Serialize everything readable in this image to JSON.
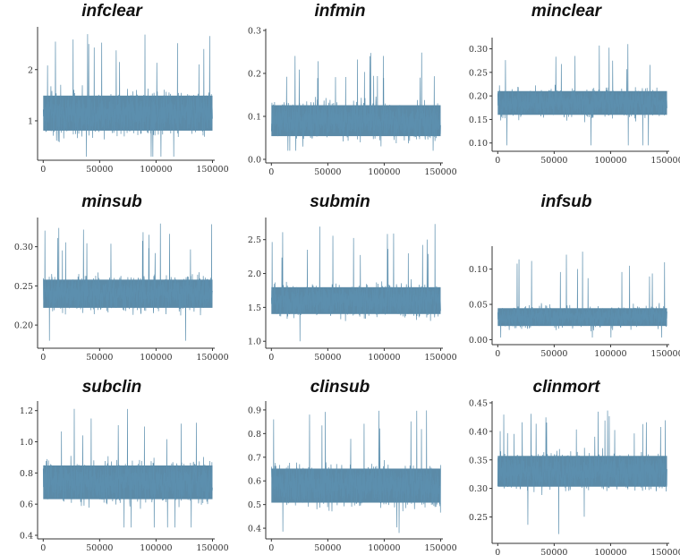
{
  "chart_data": [
    {
      "type": "line",
      "title": "infclear",
      "ylim": [
        0.3,
        2.8
      ],
      "yticks": [
        1,
        2
      ],
      "ytick_labels": [
        "1",
        "2"
      ],
      "xlim": [
        -5000,
        152000
      ],
      "xticks": [
        0,
        50000,
        100000,
        150000
      ],
      "xtick_labels": [
        "0",
        "50000",
        "100000",
        "150000"
      ],
      "series": [
        {
          "mean": 1.15,
          "spread": 0.38,
          "min": 0.3,
          "max": 2.8
        }
      ]
    },
    {
      "type": "line",
      "title": "infmin",
      "ylim": [
        0.0,
        0.3
      ],
      "yticks": [
        0.0,
        0.1,
        0.2,
        0.3
      ],
      "ytick_labels": [
        "0.0",
        "0.1",
        "0.2",
        "0.3"
      ],
      "xlim": [
        -5000,
        152000
      ],
      "xticks": [
        0,
        50000,
        100000,
        150000
      ],
      "xtick_labels": [
        "0",
        "50000",
        "100000",
        "150000"
      ],
      "series": [
        {
          "mean": 0.09,
          "spread": 0.04,
          "min": 0.02,
          "max": 0.27
        }
      ]
    },
    {
      "type": "line",
      "title": "minclear",
      "ylim": [
        0.09,
        0.32
      ],
      "yticks": [
        0.1,
        0.15,
        0.2,
        0.25,
        0.3
      ],
      "ytick_labels": [
        "0.10",
        "0.15",
        "0.20",
        "0.25",
        "0.30"
      ],
      "xlim": [
        -5000,
        152000
      ],
      "xticks": [
        0,
        50000,
        100000,
        150000
      ],
      "xtick_labels": [
        "0",
        "50000",
        "100000",
        "150000"
      ],
      "series": [
        {
          "mean": 0.185,
          "spread": 0.028,
          "min": 0.095,
          "max": 0.31
        }
      ]
    },
    {
      "type": "line",
      "title": "minsub",
      "ylim": [
        0.175,
        0.335
      ],
      "yticks": [
        0.2,
        0.25,
        0.3
      ],
      "ytick_labels": [
        "0.20",
        "0.25",
        "0.30"
      ],
      "xlim": [
        -5000,
        152000
      ],
      "xticks": [
        0,
        50000,
        100000,
        150000
      ],
      "xtick_labels": [
        "0",
        "50000",
        "100000",
        "150000"
      ],
      "series": [
        {
          "mean": 0.24,
          "spread": 0.02,
          "min": 0.18,
          "max": 0.33
        }
      ]
    },
    {
      "type": "line",
      "title": "submin",
      "ylim": [
        0.95,
        2.8
      ],
      "yticks": [
        1.0,
        1.5,
        2.0,
        2.5
      ],
      "ytick_labels": [
        "1.0",
        "1.5",
        "2.0",
        "2.5"
      ],
      "xlim": [
        -5000,
        152000
      ],
      "xticks": [
        0,
        50000,
        100000,
        150000
      ],
      "xtick_labels": [
        "0",
        "50000",
        "100000",
        "150000"
      ],
      "series": [
        {
          "mean": 1.6,
          "spread": 0.22,
          "min": 1.0,
          "max": 2.75
        }
      ]
    },
    {
      "type": "line",
      "title": "infsub",
      "ylim": [
        -0.002,
        0.13
      ],
      "yticks": [
        0.0,
        0.05,
        0.1
      ],
      "ytick_labels": [
        "0.00",
        "0.05",
        "0.10"
      ],
      "xlim": [
        -5000,
        152000
      ],
      "xticks": [
        0,
        50000,
        100000,
        150000
      ],
      "xtick_labels": [
        "0",
        "50000",
        "100000",
        "150000"
      ],
      "series": [
        {
          "mean": 0.032,
          "spread": 0.014,
          "min": 0.003,
          "max": 0.125
        }
      ]
    },
    {
      "type": "line",
      "title": "subclin",
      "ylim": [
        0.4,
        1.25
      ],
      "yticks": [
        0.4,
        0.6,
        0.8,
        1.0,
        1.2
      ],
      "ytick_labels": [
        "0.4",
        "0.6",
        "0.8",
        "1.0",
        "1.2"
      ],
      "xlim": [
        -5000,
        152000
      ],
      "xticks": [
        0,
        50000,
        100000,
        150000
      ],
      "xtick_labels": [
        "0",
        "50000",
        "100000",
        "150000"
      ],
      "series": [
        {
          "mean": 0.74,
          "spread": 0.12,
          "min": 0.45,
          "max": 1.22
        }
      ]
    },
    {
      "type": "line",
      "title": "clinsub",
      "ylim": [
        0.37,
        0.93
      ],
      "yticks": [
        0.4,
        0.5,
        0.6,
        0.7,
        0.8,
        0.9
      ],
      "ytick_labels": [
        "0.4",
        "0.5",
        "0.6",
        "0.7",
        "0.8",
        "0.9"
      ],
      "xlim": [
        -5000,
        152000
      ],
      "xticks": [
        0,
        50000,
        100000,
        150000
      ],
      "xtick_labels": [
        "0",
        "50000",
        "100000",
        "150000"
      ],
      "series": [
        {
          "mean": 0.58,
          "spread": 0.08,
          "min": 0.38,
          "max": 0.9
        }
      ]
    },
    {
      "type": "line",
      "title": "clinmort",
      "ylim": [
        0.21,
        0.45
      ],
      "yticks": [
        0.25,
        0.3,
        0.35,
        0.4,
        0.45
      ],
      "ytick_labels": [
        "0.25",
        "0.30",
        "0.35",
        "0.40",
        "0.45"
      ],
      "xlim": [
        -5000,
        152000
      ],
      "xticks": [
        0,
        50000,
        100000,
        150000
      ],
      "xtick_labels": [
        "0",
        "50000",
        "100000",
        "150000"
      ],
      "series": [
        {
          "mean": 0.33,
          "spread": 0.03,
          "min": 0.22,
          "max": 0.44
        }
      ]
    }
  ]
}
